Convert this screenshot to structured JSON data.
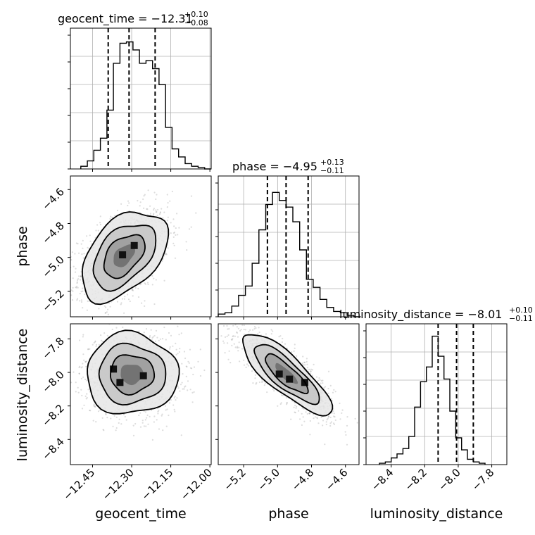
{
  "chart_data": {
    "type": "corner",
    "parameters": [
      "geocent_time",
      "phase",
      "luminosity_distance"
    ],
    "titles": [
      {
        "param": "geocent_time",
        "text": "geocent_time = −12.31",
        "plus": "+0.10",
        "minus": "−0.08"
      },
      {
        "param": "phase",
        "text": "phase = −4.95",
        "plus": "+0.13",
        "minus": "−0.11"
      },
      {
        "param": "luminosity_distance",
        "text": "luminosity_distance = −8.01",
        "plus": "+0.10",
        "minus": "−0.11"
      }
    ],
    "axis_labels": {
      "x": [
        "geocent_time",
        "phase",
        "luminosity_distance"
      ],
      "y": [
        "phase",
        "luminosity_distance"
      ]
    },
    "ranges": {
      "geocent_time": [
        -12.535,
        -11.995
      ],
      "phase": [
        -5.35,
        -4.52
      ],
      "luminosity_distance": [
        -8.55,
        -7.71
      ]
    },
    "ticks": {
      "geocent_time": {
        "values": [
          -12.45,
          -12.3,
          -12.15,
          -12.0
        ],
        "labels": [
          "−12.45",
          "−12.30",
          "−12.15",
          "−12.00"
        ]
      },
      "phase": {
        "values": [
          -5.2,
          -5.0,
          -4.8,
          -4.6
        ],
        "labels": [
          "−5.2",
          "−5.0",
          "−4.8",
          "−4.6"
        ]
      },
      "luminosity_distance": {
        "values": [
          -8.4,
          -8.2,
          -8.0,
          -7.8
        ],
        "labels": [
          "−8.4",
          "−8.2",
          "−8.0",
          "−7.8"
        ]
      }
    },
    "quantiles": {
      "geocent_time": [
        -12.39,
        -12.31,
        -12.21
      ],
      "phase": [
        -5.06,
        -4.95,
        -4.82
      ],
      "luminosity_distance": [
        -8.12,
        -8.01,
        -7.91
      ]
    },
    "marginals": {
      "geocent_time": {
        "x_start": -12.495,
        "bin_width": 0.025,
        "counts": [
          0.02,
          0.06,
          0.14,
          0.23,
          0.44,
          0.79,
          0.94,
          0.95,
          0.89,
          0.79,
          0.81,
          0.75,
          0.63,
          0.31,
          0.15,
          0.09,
          0.04,
          0.02,
          0.01,
          0.0
        ]
      },
      "phase": {
        "x_start": -5.35,
        "bin_width": 0.04,
        "counts": [
          0.02,
          0.03,
          0.08,
          0.16,
          0.23,
          0.4,
          0.65,
          0.84,
          0.93,
          0.87,
          0.82,
          0.71,
          0.5,
          0.28,
          0.22,
          0.13,
          0.07,
          0.04,
          0.03,
          0.01,
          0.0
        ]
      },
      "luminosity_distance": {
        "x_start": -8.47,
        "bin_width": 0.035,
        "counts": [
          0.01,
          0.02,
          0.05,
          0.08,
          0.12,
          0.21,
          0.43,
          0.62,
          0.73,
          0.96,
          0.81,
          0.64,
          0.4,
          0.2,
          0.11,
          0.04,
          0.02,
          0.01
        ]
      }
    },
    "joint": [
      {
        "x": "geocent_time",
        "y": "phase",
        "center": [
          -12.33,
          -4.99
        ],
        "sd": [
          0.075,
          0.12
        ],
        "rho": 0.45,
        "peaks": [
          [
            -12.335,
            -4.985
          ],
          [
            -12.29,
            -4.93
          ]
        ]
      },
      {
        "x": "geocent_time",
        "y": "luminosity_distance",
        "center": [
          -12.3,
          -8.01
        ],
        "sd": [
          0.08,
          0.11
        ],
        "rho": 0.0,
        "peaks": [
          [
            -12.37,
            -7.98
          ],
          [
            -12.255,
            -8.02
          ],
          [
            -12.345,
            -8.06
          ]
        ]
      },
      {
        "x": "phase",
        "y": "luminosity_distance",
        "center": [
          -4.95,
          -8.01
        ],
        "sd": [
          0.12,
          0.11
        ],
        "rho": -0.82,
        "peaks": [
          [
            -4.99,
            -8.01
          ],
          [
            -4.93,
            -8.04
          ],
          [
            -4.84,
            -8.06
          ]
        ]
      }
    ],
    "grid": true,
    "legend": "none"
  }
}
